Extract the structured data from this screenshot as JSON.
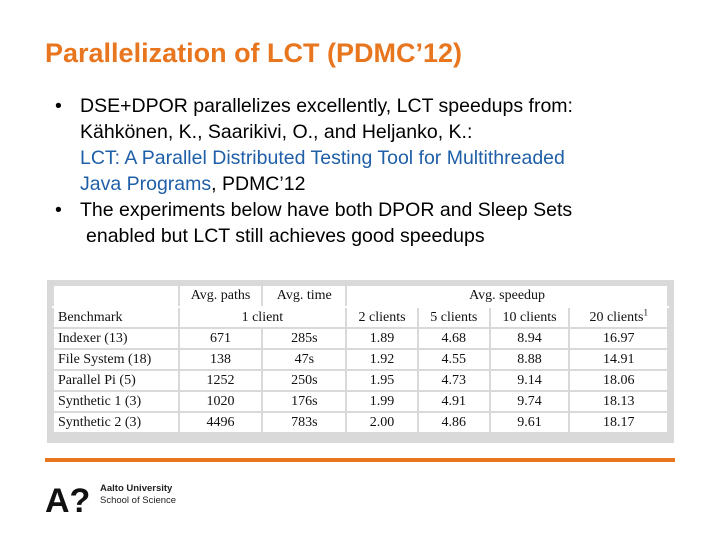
{
  "slide": {
    "title": "Parallelization of LCT (PDMC’12)"
  },
  "bullets": [
    {
      "line1": "DSE+DPOR parallelizes excellently, LCT speedups from:",
      "line2": "Kähkönen, K., Saarikivi, O., and Heljanko, K.:",
      "link_line1": "LCT: A Parallel Distributed Testing Tool for Multithreaded",
      "link_line2_part": "Java Programs",
      "line3_suffix": ", PDMC’12"
    },
    {
      "line1": "The experiments below have both DPOR and Sleep Sets",
      "line2": "enabled but LCT still achieves good speedups"
    }
  ],
  "bullet_glyph": "•",
  "table": {
    "headers_row1": [
      "Avg. paths",
      "Avg. time",
      "Avg. speedup"
    ],
    "headers_row2": [
      "Benchmark",
      "1 client",
      "2 clients",
      "5 clients",
      "10 clients",
      "20 clients"
    ],
    "footnote_mark": "1",
    "rows": [
      [
        "Indexer (13)",
        "671",
        "285s",
        "1.89",
        "4.68",
        "8.94",
        "16.97"
      ],
      [
        "File System (18)",
        "138",
        "47s",
        "1.92",
        "4.55",
        "8.88",
        "14.91"
      ],
      [
        "Parallel Pi (5)",
        "1252",
        "250s",
        "1.95",
        "4.73",
        "9.14",
        "18.06"
      ],
      [
        "Synthetic 1 (3)",
        "1020",
        "176s",
        "1.99",
        "4.91",
        "9.74",
        "18.13"
      ],
      [
        "Synthetic 2 (3)",
        "4496",
        "783s",
        "2.00",
        "4.86",
        "9.61",
        "18.17"
      ]
    ]
  },
  "footer": {
    "logo_mark": "A?",
    "university": "Aalto University",
    "school": "School of Science",
    "accent_color": "#e8761f"
  }
}
